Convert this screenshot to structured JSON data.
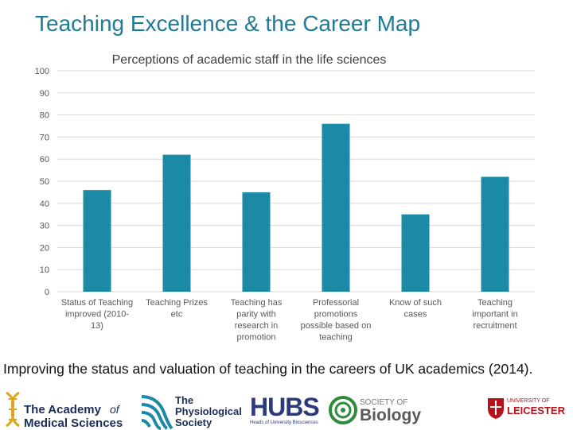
{
  "slide_title": "Teaching Excellence & the Career Map",
  "caption": "Improving the status and valuation of teaching in the careers of UK academics (2014).",
  "colors": {
    "bar": "#1a8aa6",
    "title": "#1f7a96",
    "grid": "#d9d9d9",
    "axis_text": "#595959"
  },
  "chart_data": {
    "type": "bar",
    "title": "Perceptions of academic staff in the life sciences",
    "categories": [
      "Status of Teaching improved (2010-13)",
      "Teaching Prizes etc",
      "Teaching has parity with research in promotion",
      "Professorial promotions possible based on teaching",
      "Know of such cases",
      "Teaching important in recruitment"
    ],
    "category_lines": [
      [
        "Status of Teaching",
        "improved (2010-",
        "13)"
      ],
      [
        "Teaching Prizes",
        "etc"
      ],
      [
        "Teaching has",
        "parity with",
        "research in",
        "promotion"
      ],
      [
        "Professorial",
        "promotions",
        "possible based on",
        "teaching"
      ],
      [
        "Know of such",
        "cases"
      ],
      [
        "Teaching",
        "important in",
        "recruitment"
      ]
    ],
    "values": [
      46,
      62,
      45,
      76,
      35,
      52
    ],
    "ylim": [
      0,
      100
    ],
    "yticks": [
      0,
      10,
      20,
      30,
      40,
      50,
      60,
      70,
      80,
      90,
      100
    ],
    "grid": true,
    "legend": "none"
  },
  "logos": {
    "academy": {
      "line1": "The Academy",
      "of": "of",
      "line2": "Medical Sciences"
    },
    "physiological": {
      "line1": "The",
      "line2": "Physiological",
      "line3": "Society"
    },
    "hubs": {
      "name": "HUBS",
      "sub": "Heads of University Biosciences"
    },
    "biology": {
      "line1": "SOCIETY OF",
      "line2": "Biology"
    },
    "leicester": {
      "line1": "UNIVERSITY OF",
      "line2": "LEICESTER"
    }
  }
}
